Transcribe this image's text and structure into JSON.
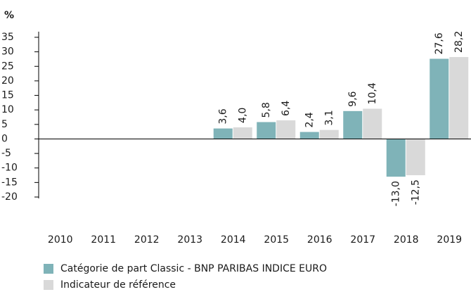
{
  "chart_data": {
    "type": "bar",
    "y_label": "%",
    "categories": [
      "2010",
      "2011",
      "2012",
      "2013",
      "2014",
      "2015",
      "2016",
      "2017",
      "2018",
      "2019"
    ],
    "series": [
      {
        "name": "Catégorie de part Classic - BNP PARIBAS INDICE EURO",
        "color": "#7fb3b8",
        "values": [
          null,
          null,
          null,
          null,
          3.6,
          5.8,
          2.4,
          9.6,
          -13.0,
          27.6
        ],
        "value_labels": [
          null,
          null,
          null,
          null,
          "3,6",
          "5,8",
          "2,4",
          "9,6",
          "-13,0",
          "27,6"
        ]
      },
      {
        "name": "Indicateur de référence",
        "color": "#d9d9d9",
        "values": [
          null,
          null,
          null,
          null,
          4.0,
          6.4,
          3.1,
          10.4,
          -12.5,
          28.2
        ],
        "value_labels": [
          null,
          null,
          null,
          null,
          "4,0",
          "6,4",
          "3,1",
          "10,4",
          "-12,5",
          "28,2"
        ]
      }
    ],
    "ylim": [
      -20,
      35
    ],
    "yticks": [
      35,
      30,
      25,
      20,
      15,
      10,
      5,
      0,
      -5,
      -10,
      -15,
      -20
    ]
  }
}
